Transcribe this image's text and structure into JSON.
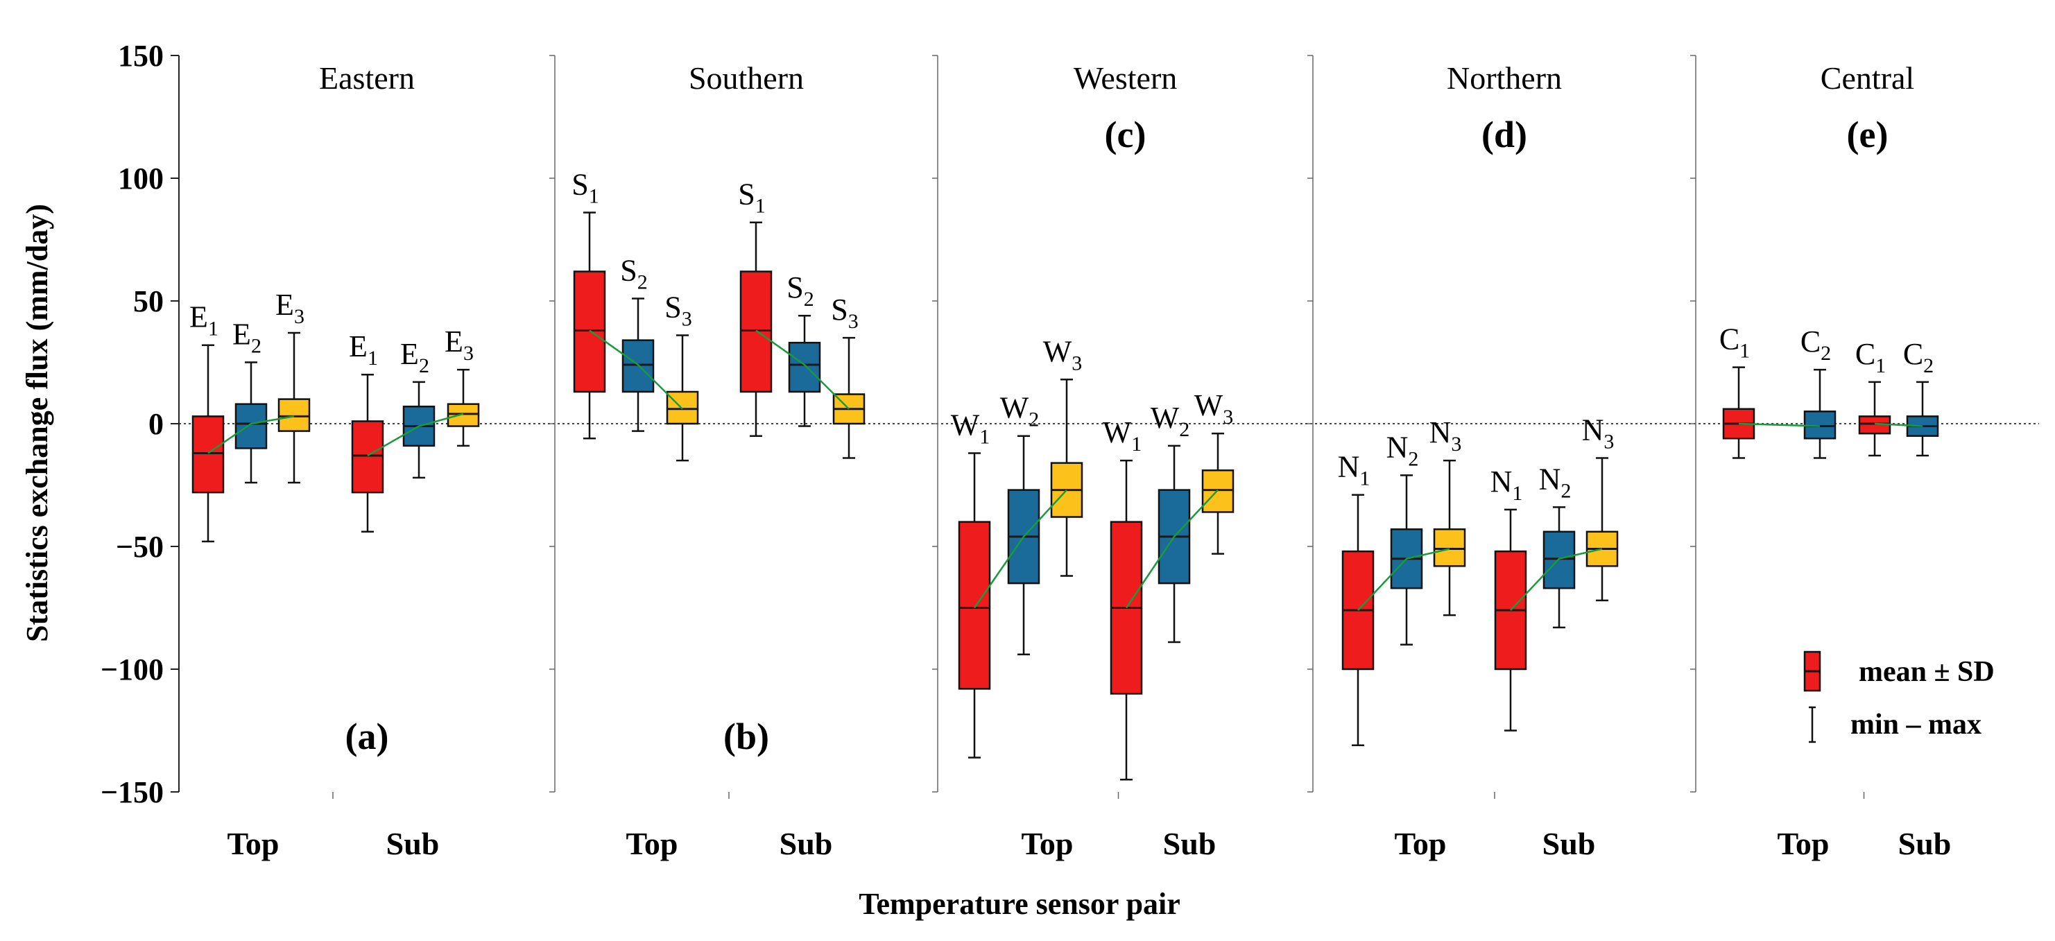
{
  "chart_data": {
    "type": "box",
    "ylabel": "Statistics exchange flux (mm/day)",
    "xlabel": "Temperature sensor pair",
    "ylim": [
      -150,
      150
    ],
    "yticks": [
      -150,
      -100,
      -50,
      0,
      50,
      100,
      150
    ],
    "ytick_labels": [
      "−150",
      "−100",
      "−50",
      "0",
      "50",
      "100",
      "150"
    ],
    "colors": {
      "1": "#ee1c1c",
      "2": "#1a6b9a",
      "3": "#fcc21b",
      "median": "#1a1a1a",
      "trend": "#1a9a3a"
    },
    "legend": {
      "box_label": "mean ± SD",
      "whisker_label": "min – max",
      "position": "bottom-right"
    },
    "panels": [
      {
        "title": "Eastern",
        "letter": "(a)",
        "letter_pos": "bottom",
        "categories": [
          "Top",
          "Sub"
        ],
        "groups": [
          {
            "category": "Top",
            "boxes": [
              {
                "label": "E",
                "sub": "1",
                "color_key": "1",
                "min": -48,
                "q1": -28,
                "median": -12,
                "q3": 3,
                "max": 32
              },
              {
                "label": "E",
                "sub": "2",
                "color_key": "2",
                "min": -24,
                "q1": -10,
                "median": 0,
                "q3": 8,
                "max": 25
              },
              {
                "label": "E",
                "sub": "3",
                "color_key": "3",
                "min": -24,
                "q1": -3,
                "median": 3,
                "q3": 10,
                "max": 37
              }
            ]
          },
          {
            "category": "Sub",
            "boxes": [
              {
                "label": "E",
                "sub": "1",
                "color_key": "1",
                "min": -44,
                "q1": -28,
                "median": -13,
                "q3": 1,
                "max": 20
              },
              {
                "label": "E",
                "sub": "2",
                "color_key": "2",
                "min": -22,
                "q1": -9,
                "median": -1,
                "q3": 7,
                "max": 17
              },
              {
                "label": "E",
                "sub": "3",
                "color_key": "3",
                "min": -9,
                "q1": -1,
                "median": 4,
                "q3": 8,
                "max": 22
              }
            ]
          }
        ]
      },
      {
        "title": "Southern",
        "letter": "(b)",
        "letter_pos": "bottom",
        "categories": [
          "Top",
          "Sub"
        ],
        "groups": [
          {
            "category": "Top",
            "boxes": [
              {
                "label": "S",
                "sub": "1",
                "color_key": "1",
                "min": -6,
                "q1": 13,
                "median": 38,
                "q3": 62,
                "max": 86
              },
              {
                "label": "S",
                "sub": "2",
                "color_key": "2",
                "min": -3,
                "q1": 13,
                "median": 24,
                "q3": 34,
                "max": 51
              },
              {
                "label": "S",
                "sub": "3",
                "color_key": "3",
                "min": -15,
                "q1": 0,
                "median": 6,
                "q3": 13,
                "max": 36
              }
            ]
          },
          {
            "category": "Sub",
            "boxes": [
              {
                "label": "S",
                "sub": "1",
                "color_key": "1",
                "min": -5,
                "q1": 13,
                "median": 38,
                "q3": 62,
                "max": 82
              },
              {
                "label": "S",
                "sub": "2",
                "color_key": "2",
                "min": -1,
                "q1": 13,
                "median": 24,
                "q3": 33,
                "max": 44
              },
              {
                "label": "S",
                "sub": "3",
                "color_key": "3",
                "min": -14,
                "q1": 0,
                "median": 6,
                "q3": 12,
                "max": 35
              }
            ]
          }
        ]
      },
      {
        "title": "Western",
        "letter": "(c)",
        "letter_pos": "top",
        "categories": [
          "Top",
          "Sub"
        ],
        "groups": [
          {
            "category": "Top",
            "boxes": [
              {
                "label": "W",
                "sub": "1",
                "color_key": "1",
                "min": -136,
                "q1": -108,
                "median": -75,
                "q3": -40,
                "max": -12
              },
              {
                "label": "W",
                "sub": "2",
                "color_key": "2",
                "min": -94,
                "q1": -65,
                "median": -46,
                "q3": -27,
                "max": -5
              },
              {
                "label": "W",
                "sub": "3",
                "color_key": "3",
                "min": -62,
                "q1": -38,
                "median": -27,
                "q3": -16,
                "max": 18
              }
            ]
          },
          {
            "category": "Sub",
            "boxes": [
              {
                "label": "W",
                "sub": "1",
                "color_key": "1",
                "min": -145,
                "q1": -110,
                "median": -75,
                "q3": -40,
                "max": -15
              },
              {
                "label": "W",
                "sub": "2",
                "color_key": "2",
                "min": -89,
                "q1": -65,
                "median": -46,
                "q3": -27,
                "max": -9
              },
              {
                "label": "W",
                "sub": "3",
                "color_key": "3",
                "min": -53,
                "q1": -36,
                "median": -27,
                "q3": -19,
                "max": -4
              }
            ]
          }
        ]
      },
      {
        "title": "Northern",
        "letter": "(d)",
        "letter_pos": "top",
        "categories": [
          "Top",
          "Sub"
        ],
        "groups": [
          {
            "category": "Top",
            "boxes": [
              {
                "label": "N",
                "sub": "1",
                "color_key": "1",
                "min": -131,
                "q1": -100,
                "median": -76,
                "q3": -52,
                "max": -29
              },
              {
                "label": "N",
                "sub": "2",
                "color_key": "2",
                "min": -90,
                "q1": -67,
                "median": -55,
                "q3": -43,
                "max": -21
              },
              {
                "label": "N",
                "sub": "3",
                "color_key": "3",
                "min": -78,
                "q1": -58,
                "median": -51,
                "q3": -43,
                "max": -15
              }
            ]
          },
          {
            "category": "Sub",
            "boxes": [
              {
                "label": "N",
                "sub": "1",
                "color_key": "1",
                "min": -125,
                "q1": -100,
                "median": -76,
                "q3": -52,
                "max": -35
              },
              {
                "label": "N",
                "sub": "2",
                "color_key": "2",
                "min": -83,
                "q1": -67,
                "median": -55,
                "q3": -44,
                "max": -34
              },
              {
                "label": "N",
                "sub": "3",
                "color_key": "3",
                "min": -72,
                "q1": -58,
                "median": -51,
                "q3": -44,
                "max": -14
              }
            ]
          }
        ]
      },
      {
        "title": "Central",
        "letter": "(e)",
        "letter_pos": "top",
        "categories": [
          "Top",
          "Sub"
        ],
        "groups": [
          {
            "category": "Top",
            "boxes": [
              {
                "label": "C",
                "sub": "1",
                "color_key": "1",
                "min": -14,
                "q1": -6,
                "median": 0,
                "q3": 6,
                "max": 23
              },
              {
                "label": "C",
                "sub": "2",
                "color_key": "2",
                "min": -14,
                "q1": -6,
                "median": -1,
                "q3": 5,
                "max": 22
              }
            ]
          },
          {
            "category": "Sub",
            "boxes": [
              {
                "label": "C",
                "sub": "1",
                "color_key": "1",
                "min": -13,
                "q1": -4,
                "median": 0,
                "q3": 3,
                "max": 17
              },
              {
                "label": "C",
                "sub": "2",
                "color_key": "2",
                "min": -13,
                "q1": -5,
                "median": -1,
                "q3": 3,
                "max": 17
              }
            ]
          }
        ]
      }
    ]
  }
}
